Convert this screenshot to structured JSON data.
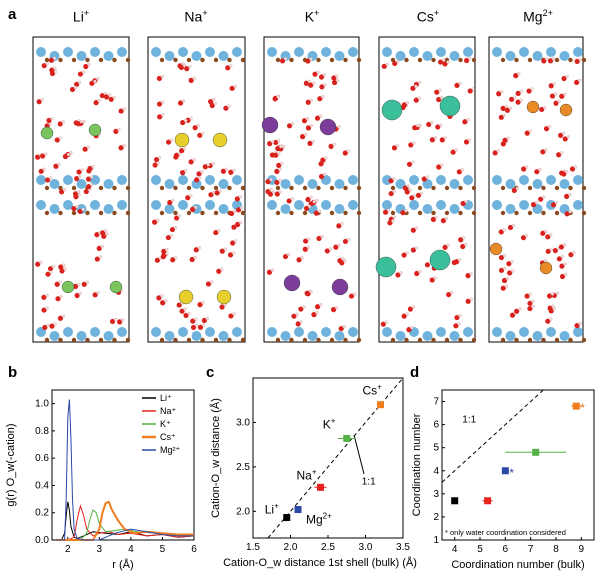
{
  "panels": {
    "a": {
      "letter": "a",
      "columns": [
        {
          "base": "Li",
          "sup": "+"
        },
        {
          "base": "Na",
          "sup": "+"
        },
        {
          "base": "K",
          "sup": "+"
        },
        {
          "base": "Cs",
          "sup": "+"
        },
        {
          "base": "Mg",
          "sup": "2+"
        }
      ]
    },
    "b": {
      "letter": "b"
    },
    "c": {
      "letter": "c"
    },
    "d": {
      "letter": "d"
    }
  },
  "colors": {
    "Li": "#000000",
    "Na": "#e8221d",
    "K": "#55b244",
    "Cs": "#ef7d22",
    "Mg": "#2b48a8",
    "Li_atom": "#79c45c",
    "Na_atom": "#e6cf2c",
    "K_atom": "#7b3d99",
    "Cs_atom": "#3bbf9b",
    "Mg_atom": "#e88a25",
    "surface": "#6fb2dc",
    "oxygen": "#d9221d",
    "hydrogen": "#f4dada",
    "dark": "#8b4a1e"
  },
  "chart_data": [
    {
      "id": "b",
      "type": "line",
      "ylabel": "g(r) O_w(-cation)",
      "xlabel": "r (Å)",
      "xlim": [
        1.5,
        6
      ],
      "ylim": [
        0,
        1.1
      ],
      "xticks": [
        "2",
        "3",
        "4",
        "5",
        "6"
      ],
      "yticks": [
        "0.0",
        "0.2",
        "0.4",
        "0.6",
        "0.8",
        "1.0"
      ],
      "legend": [
        "Li⁺",
        "Na⁺",
        "K⁺",
        "Cs⁺",
        "Mg²⁺"
      ],
      "legend_position": "top-right",
      "series": [
        {
          "name": "Li⁺",
          "x": [
            1.6,
            1.8,
            1.9,
            1.95,
            2.0,
            2.05,
            2.1,
            2.2,
            2.3,
            2.5,
            2.8,
            3.2,
            3.6,
            4.0,
            4.5,
            5,
            5.5,
            6
          ],
          "y": [
            0,
            0,
            0.05,
            0.18,
            0.28,
            0.22,
            0.1,
            0.02,
            0.01,
            0.03,
            0.06,
            0.05,
            0.04,
            0.06,
            0.03,
            0.04,
            0.02,
            0.03
          ]
        },
        {
          "name": "Na⁺",
          "x": [
            1.6,
            2.0,
            2.2,
            2.3,
            2.4,
            2.5,
            2.6,
            2.8,
            3.0,
            3.3,
            3.6,
            4.0,
            4.5,
            5,
            5.5,
            6
          ],
          "y": [
            0,
            0,
            0.02,
            0.15,
            0.25,
            0.18,
            0.08,
            0.03,
            0.05,
            0.06,
            0.04,
            0.05,
            0.03,
            0.04,
            0.02,
            0.03
          ]
        },
        {
          "name": "K⁺",
          "x": [
            1.6,
            2.4,
            2.6,
            2.7,
            2.8,
            2.9,
            3.0,
            3.2,
            3.5,
            3.8,
            4.2,
            4.8,
            5.5,
            6
          ],
          "y": [
            0,
            0,
            0.05,
            0.15,
            0.22,
            0.2,
            0.12,
            0.06,
            0.07,
            0.08,
            0.06,
            0.05,
            0.04,
            0.03
          ]
        },
        {
          "name": "Cs⁺",
          "x": [
            1.6,
            2.8,
            3.0,
            3.1,
            3.2,
            3.3,
            3.4,
            3.6,
            3.8,
            4.1,
            4.5,
            5.0,
            5.5,
            6
          ],
          "y": [
            0,
            0,
            0.08,
            0.2,
            0.27,
            0.28,
            0.22,
            0.14,
            0.08,
            0.05,
            0.06,
            0.05,
            0.04,
            0.04
          ]
        },
        {
          "name": "Mg²⁺",
          "x": [
            1.6,
            1.9,
            1.95,
            2.0,
            2.05,
            2.1,
            2.15,
            2.2,
            2.3,
            2.5,
            3.0,
            3.5,
            4.0,
            4.5,
            5.0,
            5.5,
            6
          ],
          "y": [
            0,
            0,
            0.3,
            0.9,
            1.03,
            0.75,
            0.3,
            0.08,
            0.01,
            0,
            0,
            0.05,
            0.08,
            0.06,
            0.04,
            0.03,
            0.03
          ]
        }
      ]
    },
    {
      "id": "c",
      "type": "scatter",
      "ylabel": "Cation-O_w distance (Å)",
      "xlabel": "Cation-O_w distance 1st shell (bulk) (Å)",
      "xlim": [
        1.5,
        3.5
      ],
      "ylim": [
        1.7,
        3.5
      ],
      "xticks": [
        "1.5",
        "2.0",
        "2.5",
        "3.0",
        "3.5"
      ],
      "yticks": [
        "2.0",
        "2.5",
        "3.0"
      ],
      "annotation": "1:1",
      "points": [
        {
          "label_base": "Li",
          "label_sup": "+",
          "x": 1.95,
          "y": 1.93,
          "xerr": 0.03,
          "color": "#000000"
        },
        {
          "label_base": "Mg",
          "label_sup": "2+",
          "x": 2.1,
          "y": 2.02,
          "xerr": 0.03,
          "color": "#2b48a8"
        },
        {
          "label_base": "Na",
          "label_sup": "+",
          "x": 2.4,
          "y": 2.27,
          "xerr": 0.08,
          "color": "#e8221d"
        },
        {
          "label_base": "K",
          "label_sup": "+",
          "x": 2.75,
          "y": 2.82,
          "xerr": 0.12,
          "color": "#55b244"
        },
        {
          "label_base": "Cs",
          "label_sup": "+",
          "x": 3.2,
          "y": 3.2,
          "xerr": 0.05,
          "color": "#ef7d22"
        }
      ]
    },
    {
      "id": "d",
      "type": "scatter",
      "ylabel": "Coordination number",
      "xlabel": "Coordination number (bulk)",
      "xlim": [
        3.5,
        9.5
      ],
      "ylim": [
        1,
        7.5
      ],
      "xticks": [
        "4",
        "5",
        "6",
        "7",
        "8",
        "9"
      ],
      "yticks": [
        "1",
        "2",
        "3",
        "4",
        "5",
        "6",
        "7"
      ],
      "annotation": "1:1",
      "note": "* only water coordination considered",
      "points": [
        {
          "name": "Li",
          "x": 4.0,
          "y": 2.7,
          "xerr": 0.05,
          "color": "#000000",
          "star": false
        },
        {
          "name": "Na",
          "x": 5.3,
          "y": 2.7,
          "xerr": 0.2,
          "color": "#e8221d",
          "star": false
        },
        {
          "name": "Mg",
          "x": 6.0,
          "y": 4.0,
          "xerr": 0.1,
          "color": "#2b48a8",
          "star": true
        },
        {
          "name": "K",
          "x": 7.2,
          "y": 4.8,
          "xerr": 1.2,
          "color": "#55b244",
          "star": false
        },
        {
          "name": "Cs",
          "x": 8.8,
          "y": 6.8,
          "xerr": 0.2,
          "color": "#ef7d22",
          "star": true
        }
      ]
    }
  ]
}
